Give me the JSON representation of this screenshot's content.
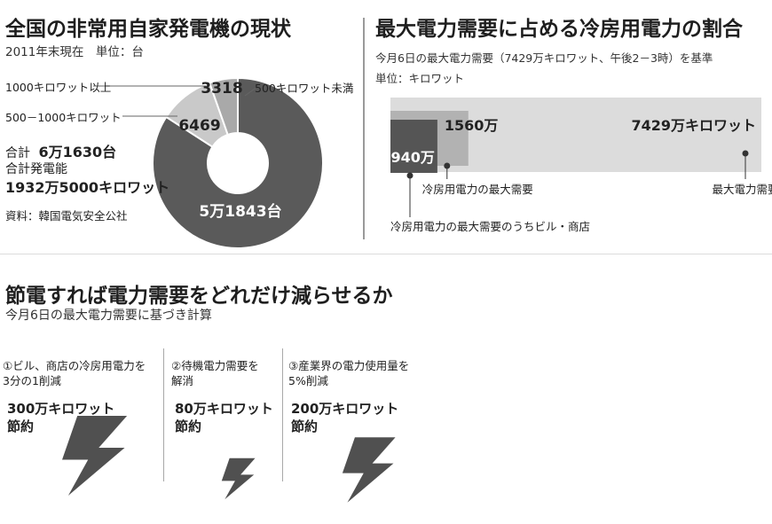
{
  "panel1": {
    "title": "全国の非常用自家発電機の現状",
    "subtitle": "2011年末現在　単位：台",
    "label_ge1000": "1000キロワット以上",
    "label_500_1000": "500－1000キロワット",
    "label_lt500": "500キロワット未満",
    "total_label": "合計",
    "total_value": "6万1630台",
    "capacity_label": "合計発電能",
    "capacity_value": "1932万5000キロワット",
    "source": "資料：韓国電気安全公社"
  },
  "panel2": {
    "title": "最大電力需要に占める冷房用電力の割合",
    "subtitle": "今月6日の最大電力需要（7429万キロワット、午後2－3時）を基準",
    "unit": "単位：キロワット",
    "label_max_demand": "最大電力需要",
    "label_cooling_max": "冷房用電力の最大需要",
    "label_cooling_buildings": "冷房用電力の最大需要のうちビル・商店"
  },
  "panel3": {
    "title": "節電すれば電力需要をどれだけ減らせるか",
    "subtitle": "今月6日の最大電力需要に基づき計算",
    "items": [
      {
        "desc1": "①ビル、商店の冷房用電力を",
        "desc2": "3分の1削減",
        "amount": "300万キロワット",
        "unit": "節約"
      },
      {
        "desc1": "②待機電力需要を",
        "desc2": "解消",
        "amount": "80万キロワット",
        "unit": "節約"
      },
      {
        "desc1": "③産業界の電力使用量を",
        "desc2": "5%削減",
        "amount": "200万キロワット",
        "unit": "節約"
      }
    ]
  },
  "colors": {
    "dark": "#5a5a5a",
    "mid": "#a9a9a9",
    "light": "#c9c9c9",
    "bar_bg": "#dcdcdc",
    "bar_mid": "#b2b2b2",
    "bar_dark": "#555555",
    "bolt": "#505050"
  },
  "icons": [
    "lightning-bolt-icon"
  ],
  "chart_data": [
    {
      "type": "pie",
      "categories": [
        "500キロワット未満",
        "500－1000キロワット",
        "1000キロワット以上"
      ],
      "values": [
        51843,
        6469,
        3318
      ],
      "value_labels": [
        "5万1843台",
        "6469",
        "3318"
      ],
      "donut": true
    },
    {
      "type": "bar",
      "orientation": "horizontal",
      "unit": "万キロワット",
      "categories": [
        "最大電力需要",
        "冷房用電力の最大需要",
        "冷房用電力の最大需要のうちビル・商店"
      ],
      "values": [
        7429,
        1560,
        940
      ],
      "value_labels": [
        "7429万キロワット",
        "1560万",
        "940万"
      ]
    },
    {
      "type": "bar",
      "unit": "万キロワット",
      "categories": [
        "①ビル、商店の冷房用電力を3分の1削減",
        "②待機電力需要を解消",
        "③産業界の電力使用量を5%削減"
      ],
      "values": [
        300,
        80,
        200
      ]
    }
  ]
}
